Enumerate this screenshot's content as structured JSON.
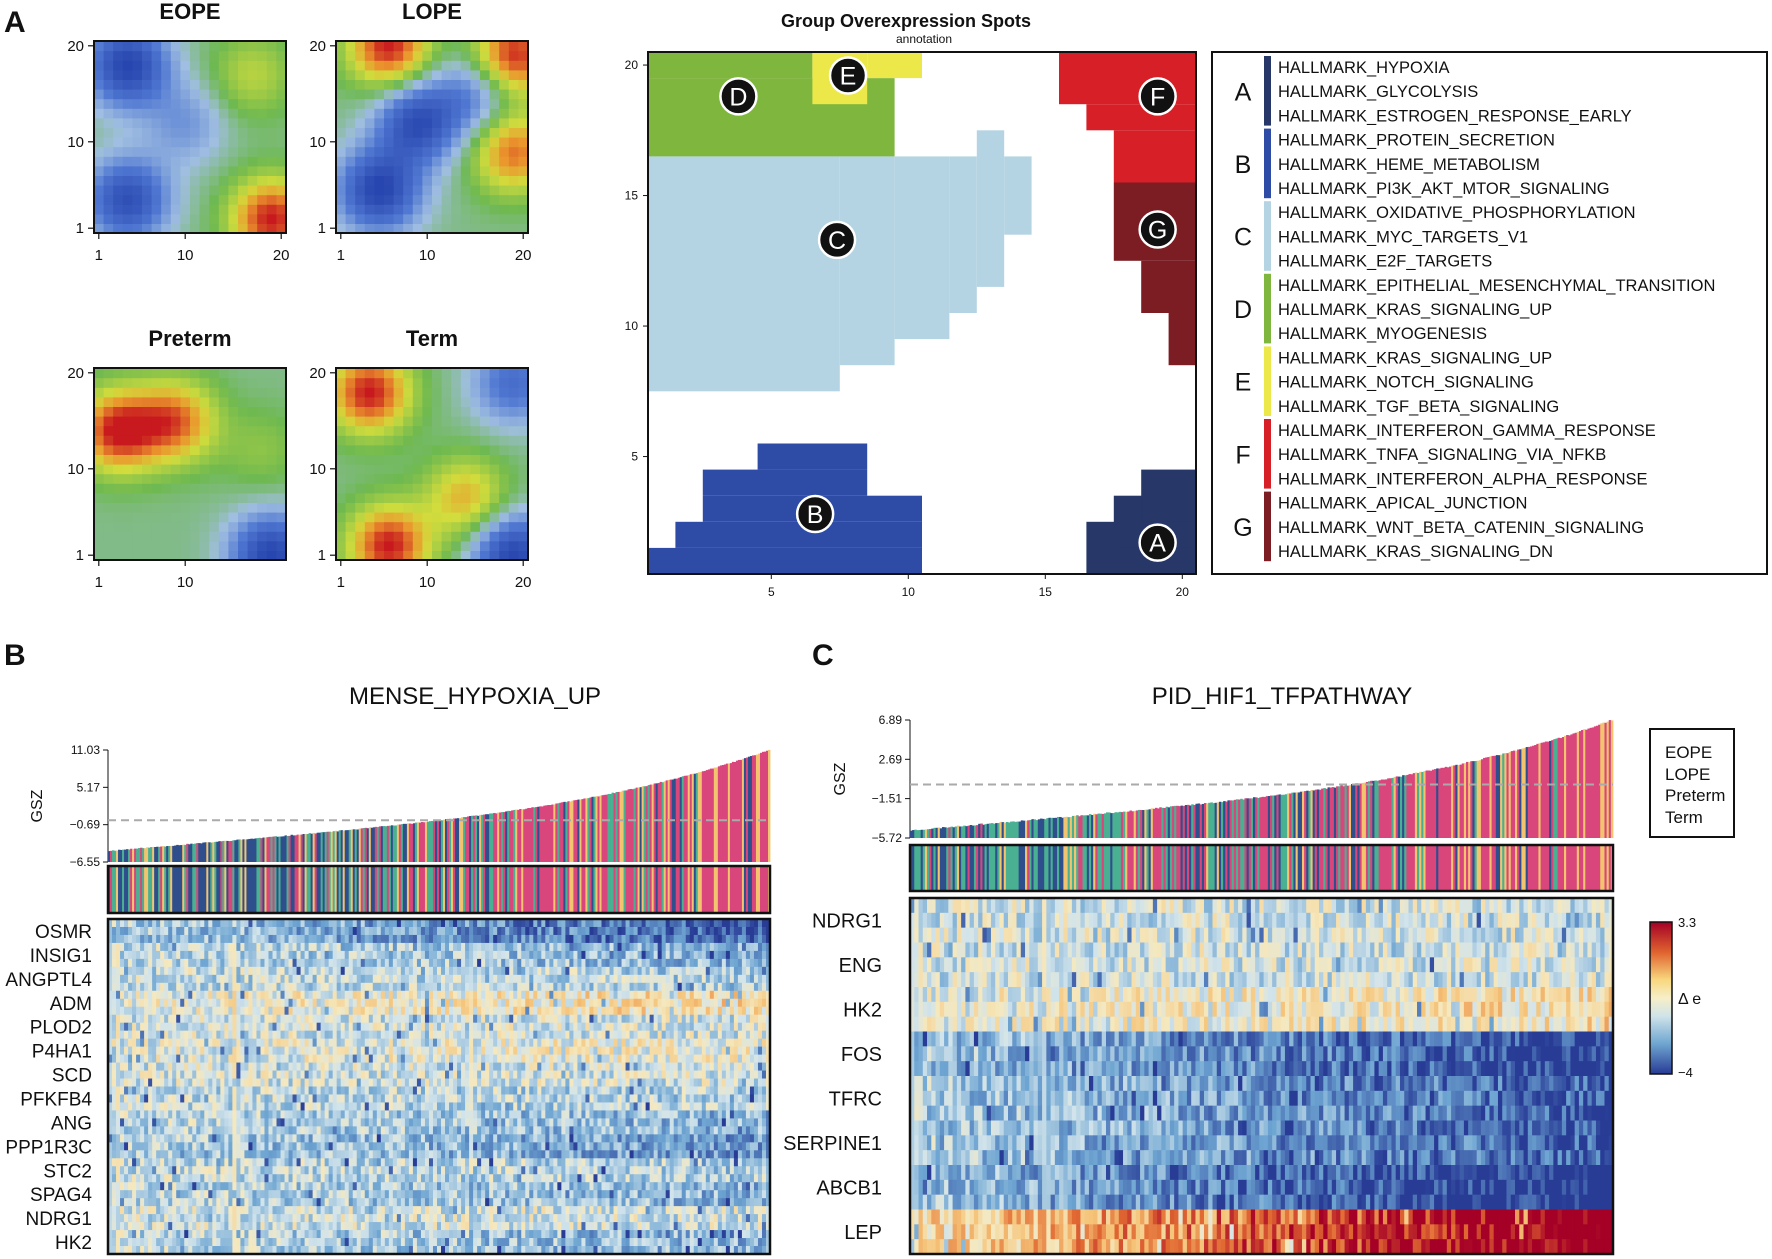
{
  "panel_labels": {
    "a": "A",
    "b": "B",
    "c": "C"
  },
  "colors": {
    "EOPE": "#d9467b",
    "LOPE": "#f3c470",
    "Preterm": "#2e4e8c",
    "Term": "#4ab092",
    "spot_A": "#263768",
    "spot_B": "#2e4ba6",
    "spot_C": "#b5d4e3",
    "spot_D": "#7fb63e",
    "spot_E": "#ece84a",
    "spot_F": "#d71f27",
    "spot_G": "#7b1d23"
  },
  "chart_data": [
    {
      "type": "heatmap",
      "title": "EOPE",
      "x_ticks": [
        "1",
        "10",
        "20"
      ],
      "y_ticks": [
        "1",
        "10",
        "20"
      ],
      "xlim": [
        1,
        20
      ],
      "ylim": [
        1,
        20
      ],
      "grid": "20x20 SOM portrait",
      "hotspots": [
        {
          "x": 4,
          "y": 18,
          "level": -1.0
        },
        {
          "x": 4,
          "y": 4,
          "level": -0.9
        },
        {
          "x": 10,
          "y": 12,
          "level": -0.35
        },
        {
          "x": 19,
          "y": 2,
          "level": 1.0
        },
        {
          "x": 17,
          "y": 17,
          "level": 0.35
        }
      ]
    },
    {
      "type": "heatmap",
      "title": "LOPE",
      "x_ticks": [
        "1",
        "10",
        "20"
      ],
      "y_ticks": [
        "1",
        "10",
        "20"
      ],
      "xlim": [
        1,
        20
      ],
      "ylim": [
        1,
        20
      ],
      "grid": "20x20 SOM portrait",
      "hotspots": [
        {
          "x": 5,
          "y": 5,
          "level": -1.0
        },
        {
          "x": 9,
          "y": 12,
          "level": -0.9
        },
        {
          "x": 6,
          "y": 20,
          "level": 1.0
        },
        {
          "x": 19,
          "y": 19,
          "level": 1.0
        },
        {
          "x": 19,
          "y": 9,
          "level": 0.8
        },
        {
          "x": 15,
          "y": 15,
          "level": -0.5
        }
      ]
    },
    {
      "type": "heatmap",
      "title": "Preterm",
      "x_ticks": [
        "1",
        "10"
      ],
      "y_ticks": [
        "1",
        "10",
        "20"
      ],
      "xlim": [
        1,
        20
      ],
      "ylim": [
        1,
        20
      ],
      "grid": "20x20 SOM portrait",
      "hotspots": [
        {
          "x": 3,
          "y": 14,
          "level": 1.0
        },
        {
          "x": 9,
          "y": 15,
          "level": 0.8
        },
        {
          "x": 19,
          "y": 1,
          "level": -1.0
        },
        {
          "x": 18,
          "y": 12,
          "level": 0.2
        }
      ]
    },
    {
      "type": "heatmap",
      "title": "Term",
      "x_ticks": [
        "1",
        "10",
        "20"
      ],
      "y_ticks": [
        "1",
        "10",
        "20"
      ],
      "xlim": [
        1,
        20
      ],
      "ylim": [
        1,
        20
      ],
      "grid": "20x20 SOM portrait",
      "hotspots": [
        {
          "x": 4,
          "y": 18,
          "level": 1.0
        },
        {
          "x": 6,
          "y": 2,
          "level": 1.0
        },
        {
          "x": 14,
          "y": 7,
          "level": 0.6
        },
        {
          "x": 19,
          "y": 1,
          "level": -1.0
        },
        {
          "x": 19,
          "y": 19,
          "level": -0.6
        }
      ]
    },
    {
      "type": "heatmap",
      "title": "Group Overexpression Spots",
      "subtitle": "annotation",
      "x_ticks": [
        "5",
        "10",
        "15",
        "20"
      ],
      "y_ticks": [
        "5",
        "10",
        "15",
        "20"
      ],
      "xlim": [
        0.5,
        20.5
      ],
      "ylim": [
        0.5,
        20.5
      ],
      "spots": [
        {
          "label": "A",
          "x": 19.1,
          "y": 1.7,
          "rects": [
            [
              17,
              1,
              20,
              2
            ],
            [
              18,
              2,
              20,
              3
            ],
            [
              19,
              3,
              20,
              4
            ]
          ]
        },
        {
          "label": "B",
          "x": 6.6,
          "y": 2.8,
          "rects": [
            [
              1,
              1,
              10,
              1
            ],
            [
              2,
              2,
              10,
              2
            ],
            [
              3,
              3,
              10,
              3
            ],
            [
              3,
              4,
              8,
              4
            ],
            [
              5,
              5,
              8,
              5
            ]
          ]
        },
        {
          "label": "C",
          "x": 7.4,
          "y": 13.3,
          "rects": [
            [
              1,
              8,
              7,
              16
            ],
            [
              8,
              9,
              9,
              16
            ],
            [
              10,
              10,
              11,
              16
            ],
            [
              12,
              11,
              12,
              16
            ],
            [
              13,
              12,
              13,
              17
            ],
            [
              14,
              14,
              14,
              16
            ]
          ]
        },
        {
          "label": "D",
          "x": 3.8,
          "y": 18.8,
          "rects": [
            [
              1,
              17,
              9,
              19
            ],
            [
              1,
              20,
              6,
              20
            ]
          ]
        },
        {
          "label": "E",
          "x": 7.8,
          "y": 19.6,
          "rects": [
            [
              7,
              19,
              8,
              20
            ],
            [
              9,
              20,
              10,
              20
            ]
          ]
        },
        {
          "label": "F",
          "x": 19.1,
          "y": 18.8,
          "rects": [
            [
              16,
              19,
              20,
              20
            ],
            [
              17,
              18,
              20,
              18
            ],
            [
              18,
              16,
              20,
              17
            ]
          ]
        },
        {
          "label": "G",
          "x": 19.1,
          "y": 13.7,
          "rects": [
            [
              18,
              13,
              20,
              15
            ],
            [
              19,
              11,
              20,
              12
            ],
            [
              20,
              9,
              20,
              10
            ]
          ]
        }
      ],
      "legend": [
        {
          "key": "A",
          "terms": [
            "HALLMARK_HYPOXIA",
            "HALLMARK_GLYCOLYSIS",
            "HALLMARK_ESTROGEN_RESPONSE_EARLY"
          ]
        },
        {
          "key": "B",
          "terms": [
            "HALLMARK_PROTEIN_SECRETION",
            "HALLMARK_HEME_METABOLISM",
            "HALLMARK_PI3K_AKT_MTOR_SIGNALING"
          ]
        },
        {
          "key": "C",
          "terms": [
            "HALLMARK_OXIDATIVE_PHOSPHORYLATION",
            "HALLMARK_MYC_TARGETS_V1",
            "HALLMARK_E2F_TARGETS"
          ]
        },
        {
          "key": "D",
          "terms": [
            "HALLMARK_EPITHELIAL_MESENCHYMAL_TRANSITION",
            "HALLMARK_KRAS_SIGNALING_UP",
            "HALLMARK_MYOGENESIS"
          ]
        },
        {
          "key": "E",
          "terms": [
            "HALLMARK_KRAS_SIGNALING_UP",
            "HALLMARK_NOTCH_SIGNALING",
            "HALLMARK_TGF_BETA_SIGNALING"
          ]
        },
        {
          "key": "F",
          "terms": [
            "HALLMARK_INTERFERON_GAMMA_RESPONSE",
            "HALLMARK_TNFA_SIGNALING_VIA_NFKB",
            "HALLMARK_INTERFERON_ALPHA_RESPONSE"
          ]
        },
        {
          "key": "G",
          "terms": [
            "HALLMARK_APICAL_JUNCTION",
            "HALLMARK_WNT_BETA_CATENIN_SIGNALING",
            "HALLMARK_KRAS_SIGNALING_DN"
          ]
        }
      ]
    },
    {
      "type": "bar",
      "title": "MENSE_HYPOXIA_UP",
      "ylabel": "GSZ",
      "y_ticks": [
        "11.03",
        "5.17",
        "−0.69",
        "−6.55"
      ],
      "ylim": [
        -6.55,
        11.03
      ],
      "threshold": 0,
      "n_samples": 330,
      "gsz_start": -4.8,
      "gsz_end": 11.03,
      "category_mix": "EOPE enriched at high GSZ, Term and Preterm enriched at low GSZ",
      "genes": [
        "OSMR",
        "INSIG1",
        "ANGPTL4",
        "ADM",
        "PLOD2",
        "P4HA1",
        "SCD",
        "PFKFB4",
        "ANG",
        "PPP1R3C",
        "STC2",
        "SPAG4",
        "NDRG1",
        "HK2"
      ],
      "gene_trend": [
        0.2,
        0.35,
        0.4,
        0.55,
        0.45,
        0.5,
        0.45,
        0.4,
        0.35,
        0.3,
        0.4,
        0.35,
        0.45,
        0.35
      ]
    },
    {
      "type": "bar",
      "title": "PID_HIF1_TFPATHWAY",
      "ylabel": "GSZ",
      "y_ticks": [
        "6.89",
        "2.69",
        "−1.51",
        "−5.72"
      ],
      "ylim": [
        -5.72,
        6.89
      ],
      "threshold": 0,
      "n_samples": 330,
      "gsz_start": -4.9,
      "gsz_end": 6.89,
      "category_mix": "EOPE enriched at high GSZ, Term and Preterm enriched at low GSZ",
      "genes": [
        "NDRG1",
        "ENG",
        "HK2",
        "FOS",
        "TFRC",
        "SERPINE1",
        "ABCB1",
        "LEP"
      ],
      "gene_trend": [
        0.45,
        0.45,
        0.55,
        0.15,
        0.2,
        0.2,
        0.1,
        0.9
      ],
      "legend": [
        "EOPE",
        "LOPE",
        "Preterm",
        "Term"
      ],
      "colorbar": {
        "label": "Δ e",
        "max": "3.3",
        "min": "−4"
      }
    }
  ]
}
